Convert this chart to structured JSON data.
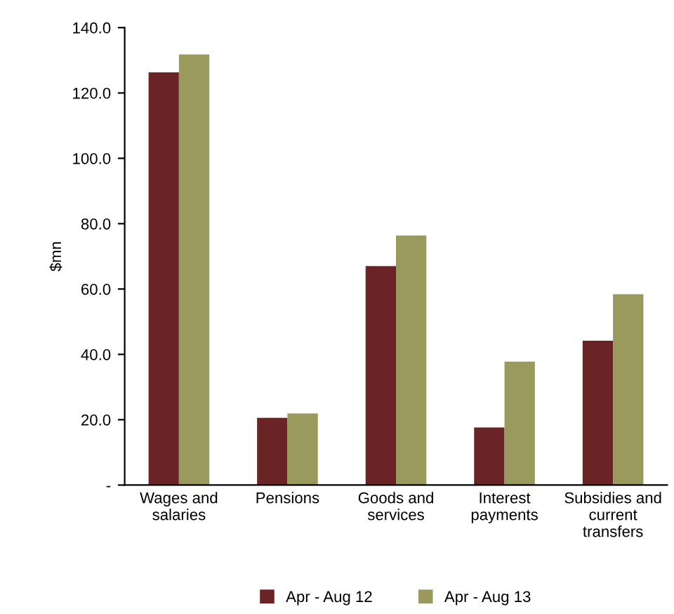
{
  "chart_data": {
    "type": "bar",
    "ylabel": "$mn",
    "categories": [
      "Wages and\nsalaries",
      "Pensions",
      "Goods and\nservices",
      "Interest\npayments",
      "Subsidies and\ncurrent\ntransfers"
    ],
    "series": [
      {
        "name": "Apr - Aug 12",
        "color": "#6b2426",
        "values": [
          126.3,
          20.6,
          67.0,
          17.6,
          44.2
        ]
      },
      {
        "name": "Apr - Aug 13",
        "color": "#9b9a5e",
        "values": [
          131.8,
          21.9,
          76.4,
          37.8,
          58.4
        ]
      }
    ],
    "ylim": [
      0,
      140
    ],
    "yticks": [
      {
        "value": 0,
        "label": "-"
      },
      {
        "value": 20,
        "label": "20.0"
      },
      {
        "value": 40,
        "label": "40.0"
      },
      {
        "value": 60,
        "label": "60.0"
      },
      {
        "value": 80,
        "label": "80.0"
      },
      {
        "value": 100,
        "label": "100.0"
      },
      {
        "value": 120,
        "label": "120.0"
      },
      {
        "value": 140,
        "label": "140.0"
      }
    ],
    "grid": false,
    "legend": "bottom"
  }
}
